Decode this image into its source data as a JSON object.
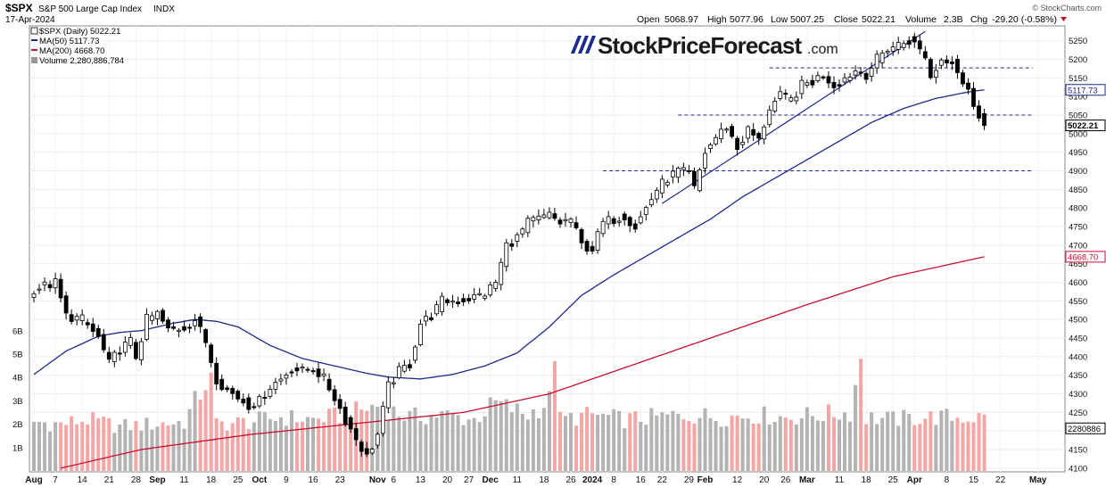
{
  "header": {
    "symbol": "$SPX",
    "name": "S&P 500 Large Cap Index",
    "exchange": "INDX",
    "date": "17-Apr-2024",
    "stockcharts": "© StockCharts.com",
    "open_label": "Open",
    "open": "5068.97",
    "high_label": "High",
    "high": "5077.96",
    "low_label": "Low",
    "low": "5007.25",
    "close_label": "Close",
    "close": "5022.21",
    "volume_label": "Volume",
    "volume": "2.3B",
    "chg_label": "Chg",
    "chg": "-29.20 (-0.58%)"
  },
  "legend": [
    {
      "label": "$SPX (Daily) 5022.21",
      "color": "#000000"
    },
    {
      "label": "MA(50) 5117.73",
      "color": "#1c2a8c"
    },
    {
      "label": "MA(200) 4668.70",
      "color": "#c8102e"
    },
    {
      "label": "Volume 2,280,886,784",
      "color": "#888888"
    }
  ],
  "watermark": {
    "brand": "StockPriceForecast",
    "tld": ".com"
  },
  "colors": {
    "up": "#ffffff",
    "down": "#000000",
    "ma50": "#1c2a8c",
    "ma200": "#c8102e",
    "vol_down": "#f4a6a6",
    "vol_up": "#b3b3b3",
    "support": "#1c2a8c"
  },
  "chart_data": {
    "type": "candlestick",
    "title": "$SPX S&P 500 Large Cap Index INDX",
    "ylim": [
      4090,
      5290
    ],
    "y_ticks": [
      4100,
      4150,
      4200,
      4250,
      4300,
      4350,
      4400,
      4450,
      4500,
      4550,
      4600,
      4650,
      4700,
      4750,
      4800,
      4850,
      4900,
      4950,
      5000,
      5050,
      5100,
      5150,
      5200,
      5250
    ],
    "value_badges": [
      {
        "label": "5117.73",
        "value": 5117.73,
        "color": "#1c2a8c"
      },
      {
        "label": "5022.21",
        "value": 5022.21,
        "color": "#000000"
      },
      {
        "label": "4668.70",
        "value": 4668.7,
        "color": "#c8102e"
      },
      {
        "label": "2280886",
        "value": 4207,
        "color": "#000000"
      }
    ],
    "volume_ticks": [
      {
        "label": "1B",
        "value": 1
      },
      {
        "label": "2B",
        "value": 2
      },
      {
        "label": "3B",
        "value": 3
      },
      {
        "label": "4B",
        "value": 4
      },
      {
        "label": "5B",
        "value": 5
      },
      {
        "label": "6B",
        "value": 6
      }
    ],
    "x_ticks": [
      {
        "label": "Aug",
        "i": 0
      },
      {
        "label": "7",
        "i": 4
      },
      {
        "label": "14",
        "i": 9
      },
      {
        "label": "21",
        "i": 14
      },
      {
        "label": "28",
        "i": 19
      },
      {
        "label": "Sep",
        "i": 23
      },
      {
        "label": "11",
        "i": 28
      },
      {
        "label": "18",
        "i": 33
      },
      {
        "label": "25",
        "i": 38
      },
      {
        "label": "Oct",
        "i": 42
      },
      {
        "label": "9",
        "i": 47
      },
      {
        "label": "16",
        "i": 52
      },
      {
        "label": "23",
        "i": 57
      },
      {
        "label": "Nov",
        "i": 64
      },
      {
        "label": "6",
        "i": 67
      },
      {
        "label": "13",
        "i": 72
      },
      {
        "label": "20",
        "i": 77
      },
      {
        "label": "27",
        "i": 81
      },
      {
        "label": "Dec",
        "i": 85
      },
      {
        "label": "11",
        "i": 90
      },
      {
        "label": "18",
        "i": 95
      },
      {
        "label": "26",
        "i": 100
      },
      {
        "label": "2024",
        "i": 104
      },
      {
        "label": "8",
        "i": 108
      },
      {
        "label": "16",
        "i": 113
      },
      {
        "label": "22",
        "i": 117
      },
      {
        "label": "29",
        "i": 122
      },
      {
        "label": "Feb",
        "i": 125
      },
      {
        "label": "12",
        "i": 131
      },
      {
        "label": "20",
        "i": 136
      },
      {
        "label": "26",
        "i": 140
      },
      {
        "label": "Mar",
        "i": 144
      },
      {
        "label": "11",
        "i": 150
      },
      {
        "label": "18",
        "i": 155
      },
      {
        "label": "25",
        "i": 160
      },
      {
        "label": "Apr",
        "i": 164
      },
      {
        "label": "8",
        "i": 170
      },
      {
        "label": "15",
        "i": 175
      },
      {
        "label": "22",
        "i": 180
      },
      {
        "label": "May",
        "i": 187
      }
    ],
    "support_lines": [
      {
        "value": 5177,
        "from": 137,
        "to": 186
      },
      {
        "value": 5050,
        "from": 120,
        "to": 186
      },
      {
        "value": 4900,
        "from": 106,
        "to": 186
      }
    ],
    "trendline": [
      {
        "i": 117,
        "v": 4812
      },
      {
        "i": 166,
        "v": 5275
      }
    ],
    "close_path": [
      {
        "i": 0,
        "v": 4582
      },
      {
        "i": 4,
        "v": 4598
      },
      {
        "i": 6,
        "v": 4510
      },
      {
        "i": 9,
        "v": 4500
      },
      {
        "i": 12,
        "v": 4450
      },
      {
        "i": 14,
        "v": 4380
      },
      {
        "i": 16,
        "v": 4420
      },
      {
        "i": 18,
        "v": 4440
      },
      {
        "i": 19,
        "v": 4400
      },
      {
        "i": 21,
        "v": 4500
      },
      {
        "i": 23,
        "v": 4515
      },
      {
        "i": 25,
        "v": 4470
      },
      {
        "i": 28,
        "v": 4480
      },
      {
        "i": 30,
        "v": 4500
      },
      {
        "i": 32,
        "v": 4440
      },
      {
        "i": 34,
        "v": 4340
      },
      {
        "i": 36,
        "v": 4310
      },
      {
        "i": 38,
        "v": 4290
      },
      {
        "i": 40,
        "v": 4270
      },
      {
        "i": 42,
        "v": 4280
      },
      {
        "i": 44,
        "v": 4320
      },
      {
        "i": 46,
        "v": 4340
      },
      {
        "i": 48,
        "v": 4370
      },
      {
        "i": 50,
        "v": 4360
      },
      {
        "i": 52,
        "v": 4370
      },
      {
        "i": 54,
        "v": 4340
      },
      {
        "i": 56,
        "v": 4290
      },
      {
        "i": 58,
        "v": 4230
      },
      {
        "i": 60,
        "v": 4180
      },
      {
        "i": 62,
        "v": 4130
      },
      {
        "i": 64,
        "v": 4190
      },
      {
        "i": 66,
        "v": 4320
      },
      {
        "i": 68,
        "v": 4360
      },
      {
        "i": 70,
        "v": 4380
      },
      {
        "i": 72,
        "v": 4490
      },
      {
        "i": 74,
        "v": 4510
      },
      {
        "i": 76,
        "v": 4550
      },
      {
        "i": 79,
        "v": 4550
      },
      {
        "i": 82,
        "v": 4560
      },
      {
        "i": 84,
        "v": 4570
      },
      {
        "i": 86,
        "v": 4600
      },
      {
        "i": 88,
        "v": 4700
      },
      {
        "i": 90,
        "v": 4720
      },
      {
        "i": 92,
        "v": 4760
      },
      {
        "i": 94,
        "v": 4770
      },
      {
        "i": 96,
        "v": 4780
      },
      {
        "i": 98,
        "v": 4760
      },
      {
        "i": 100,
        "v": 4770
      },
      {
        "i": 102,
        "v": 4700
      },
      {
        "i": 104,
        "v": 4690
      },
      {
        "i": 106,
        "v": 4760
      },
      {
        "i": 108,
        "v": 4770
      },
      {
        "i": 110,
        "v": 4780
      },
      {
        "i": 112,
        "v": 4750
      },
      {
        "i": 114,
        "v": 4800
      },
      {
        "i": 116,
        "v": 4850
      },
      {
        "i": 118,
        "v": 4880
      },
      {
        "i": 120,
        "v": 4900
      },
      {
        "i": 122,
        "v": 4890
      },
      {
        "i": 123,
        "v": 4850
      },
      {
        "i": 125,
        "v": 4950
      },
      {
        "i": 127,
        "v": 4990
      },
      {
        "i": 129,
        "v": 5020
      },
      {
        "i": 131,
        "v": 4960
      },
      {
        "i": 133,
        "v": 5010
      },
      {
        "i": 135,
        "v": 4980
      },
      {
        "i": 137,
        "v": 5070
      },
      {
        "i": 139,
        "v": 5100
      },
      {
        "i": 141,
        "v": 5090
      },
      {
        "i": 143,
        "v": 5130
      },
      {
        "i": 145,
        "v": 5140
      },
      {
        "i": 147,
        "v": 5160
      },
      {
        "i": 149,
        "v": 5130
      },
      {
        "i": 151,
        "v": 5150
      },
      {
        "i": 153,
        "v": 5170
      },
      {
        "i": 155,
        "v": 5160
      },
      {
        "i": 157,
        "v": 5200
      },
      {
        "i": 159,
        "v": 5230
      },
      {
        "i": 161,
        "v": 5240
      },
      {
        "i": 163,
        "v": 5250
      },
      {
        "i": 164,
        "v": 5240
      },
      {
        "i": 166,
        "v": 5210
      },
      {
        "i": 167,
        "v": 5150
      },
      {
        "i": 169,
        "v": 5200
      },
      {
        "i": 171,
        "v": 5200
      },
      {
        "i": 173,
        "v": 5140
      },
      {
        "i": 174,
        "v": 5120
      },
      {
        "i": 175,
        "v": 5065
      },
      {
        "i": 176,
        "v": 5051
      },
      {
        "i": 177,
        "v": 5022
      }
    ],
    "ma50": [
      {
        "i": 0,
        "v": 4352
      },
      {
        "i": 6,
        "v": 4415
      },
      {
        "i": 12,
        "v": 4455
      },
      {
        "i": 16,
        "v": 4465
      },
      {
        "i": 20,
        "v": 4470
      },
      {
        "i": 26,
        "v": 4490
      },
      {
        "i": 30,
        "v": 4500
      },
      {
        "i": 34,
        "v": 4495
      },
      {
        "i": 38,
        "v": 4480
      },
      {
        "i": 44,
        "v": 4430
      },
      {
        "i": 50,
        "v": 4395
      },
      {
        "i": 56,
        "v": 4375
      },
      {
        "i": 62,
        "v": 4355
      },
      {
        "i": 66,
        "v": 4345
      },
      {
        "i": 72,
        "v": 4340
      },
      {
        "i": 78,
        "v": 4352
      },
      {
        "i": 84,
        "v": 4375
      },
      {
        "i": 90,
        "v": 4410
      },
      {
        "i": 96,
        "v": 4480
      },
      {
        "i": 102,
        "v": 4565
      },
      {
        "i": 108,
        "v": 4620
      },
      {
        "i": 114,
        "v": 4670
      },
      {
        "i": 120,
        "v": 4720
      },
      {
        "i": 126,
        "v": 4770
      },
      {
        "i": 132,
        "v": 4830
      },
      {
        "i": 138,
        "v": 4880
      },
      {
        "i": 144,
        "v": 4930
      },
      {
        "i": 150,
        "v": 4980
      },
      {
        "i": 156,
        "v": 5030
      },
      {
        "i": 162,
        "v": 5068
      },
      {
        "i": 168,
        "v": 5095
      },
      {
        "i": 174,
        "v": 5112
      },
      {
        "i": 177,
        "v": 5118
      }
    ],
    "ma200": [
      {
        "i": 5,
        "v": 4100
      },
      {
        "i": 20,
        "v": 4150
      },
      {
        "i": 40,
        "v": 4190
      },
      {
        "i": 60,
        "v": 4220
      },
      {
        "i": 80,
        "v": 4250
      },
      {
        "i": 96,
        "v": 4300
      },
      {
        "i": 112,
        "v": 4380
      },
      {
        "i": 128,
        "v": 4460
      },
      {
        "i": 144,
        "v": 4540
      },
      {
        "i": 160,
        "v": 4615
      },
      {
        "i": 177,
        "v": 4668.7
      }
    ],
    "volume_path": [
      {
        "i": 0,
        "v": 2.1
      },
      {
        "i": 5,
        "v": 2.0
      },
      {
        "i": 10,
        "v": 2.2
      },
      {
        "i": 16,
        "v": 1.9
      },
      {
        "i": 22,
        "v": 2.0
      },
      {
        "i": 28,
        "v": 2.1
      },
      {
        "i": 33,
        "v": 4.2
      },
      {
        "i": 34,
        "v": 2.0
      },
      {
        "i": 40,
        "v": 2.1
      },
      {
        "i": 46,
        "v": 2.3
      },
      {
        "i": 52,
        "v": 2.2
      },
      {
        "i": 58,
        "v": 2.4
      },
      {
        "i": 64,
        "v": 2.8
      },
      {
        "i": 70,
        "v": 2.3
      },
      {
        "i": 76,
        "v": 2.4
      },
      {
        "i": 82,
        "v": 2.2
      },
      {
        "i": 86,
        "v": 2.9
      },
      {
        "i": 92,
        "v": 2.4
      },
      {
        "i": 96,
        "v": 3.0
      },
      {
        "i": 97,
        "v": 4.7
      },
      {
        "i": 98,
        "v": 2.2
      },
      {
        "i": 104,
        "v": 2.4
      },
      {
        "i": 110,
        "v": 2.2
      },
      {
        "i": 116,
        "v": 2.3
      },
      {
        "i": 122,
        "v": 2.4
      },
      {
        "i": 128,
        "v": 2.3
      },
      {
        "i": 134,
        "v": 2.4
      },
      {
        "i": 140,
        "v": 2.3
      },
      {
        "i": 146,
        "v": 2.4
      },
      {
        "i": 152,
        "v": 2.5
      },
      {
        "i": 154,
        "v": 4.8
      },
      {
        "i": 155,
        "v": 2.3
      },
      {
        "i": 160,
        "v": 2.2
      },
      {
        "i": 166,
        "v": 2.3
      },
      {
        "i": 172,
        "v": 2.3
      },
      {
        "i": 177,
        "v": 2.28
      }
    ],
    "n_bars": 178
  }
}
